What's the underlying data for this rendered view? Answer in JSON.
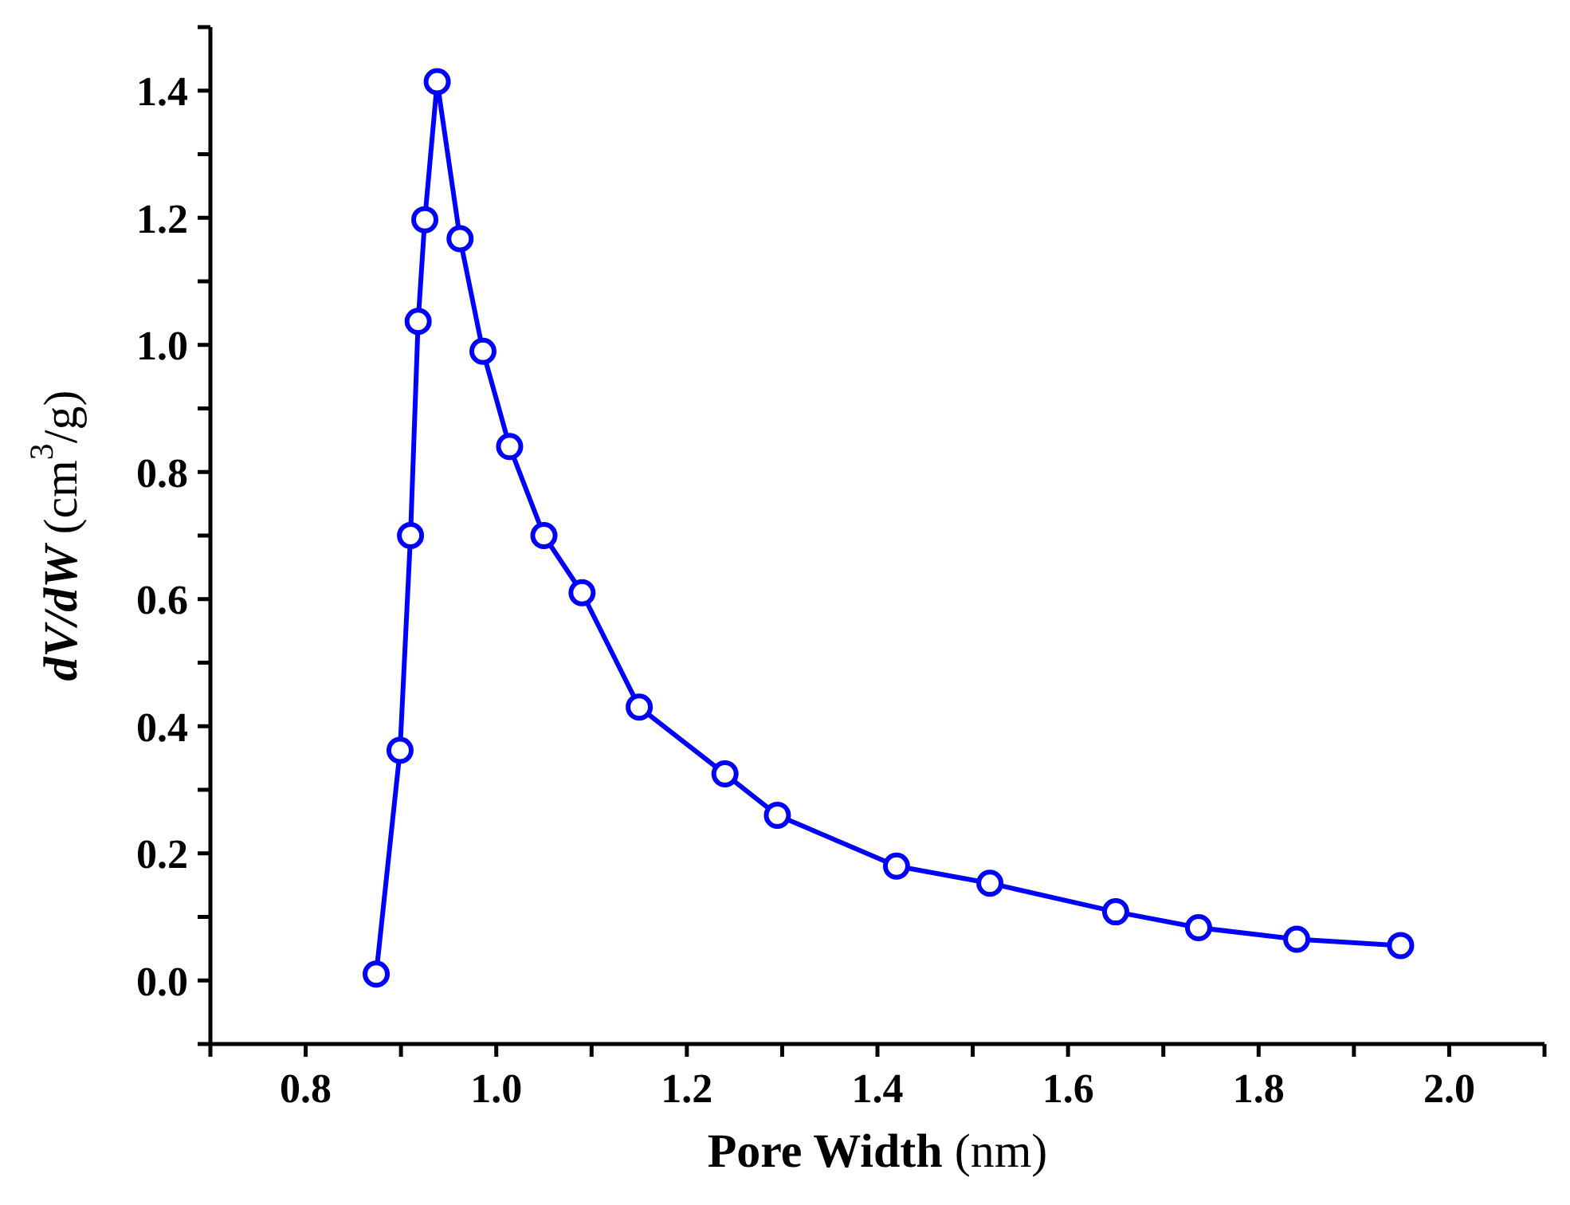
{
  "chart_data": {
    "type": "line",
    "xlabel": "Pore Width (nm)",
    "ylabel": "dV/dW (cm$^{3}$/g)",
    "xlim": [
      0.7,
      2.1
    ],
    "ylim": [
      -0.1,
      1.5
    ],
    "xticks": [
      {
        "value": 0.7,
        "label": null
      },
      0.8,
      {
        "value": 0.9,
        "label": null
      },
      {
        "value": 1,
        "label": "1.0"
      },
      {
        "value": 1.1,
        "label": null
      },
      1.2,
      {
        "value": 1.3,
        "label": null
      },
      1.4,
      {
        "value": 1.5,
        "label": null
      },
      1.6,
      {
        "value": 1.7,
        "label": null
      },
      1.8,
      {
        "value": 1.9,
        "label": null
      },
      {
        "value": 2,
        "label": "2.0"
      },
      {
        "value": 2.1,
        "label": null
      }
    ],
    "yticks": [
      {
        "value": -0.1,
        "label": null
      },
      {
        "value": 0,
        "label": "0.0"
      },
      {
        "value": 0.1,
        "label": null
      },
      0.2,
      {
        "value": 0.3,
        "label": null
      },
      0.4,
      {
        "value": 0.5,
        "label": null
      },
      0.6,
      {
        "value": 0.7,
        "label": null
      },
      0.8,
      {
        "value": 0.9,
        "label": null
      },
      {
        "value": 1,
        "label": "1.0"
      },
      {
        "value": 1.1,
        "label": null
      },
      1.2,
      {
        "value": 1.3,
        "label": null
      },
      1.4,
      {
        "value": 1.5,
        "label": null
      }
    ],
    "x": [
      0.874,
      0.899,
      0.91,
      0.918,
      0.925,
      0.938,
      0.962,
      0.986,
      1.014,
      1.05,
      1.09,
      1.15,
      1.24,
      1.295,
      1.42,
      1.518,
      1.65,
      1.737,
      1.84,
      1.949
    ],
    "series": [
      {
        "color": "#0000ff",
        "values": [
          0.01,
          0.362,
          0.7,
          1.037,
          1.197,
          1.414,
          1.167,
          0.99,
          0.84,
          0.7,
          0.61,
          0.43,
          0.325,
          0.26,
          0.18,
          0.153,
          0.108,
          0.083,
          0.065,
          0.055
        ]
      }
    ],
    "marker": "circle",
    "line_style": "solid"
  }
}
